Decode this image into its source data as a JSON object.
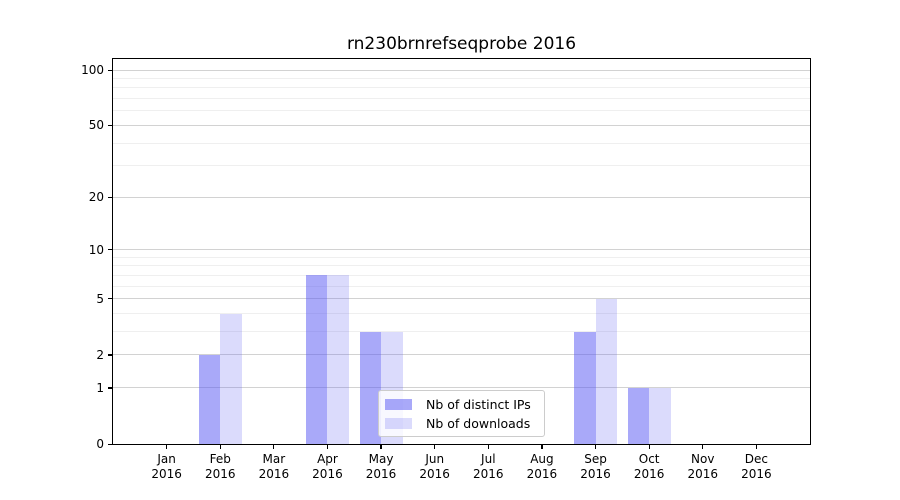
{
  "title": "rn230brnrefseqprobe 2016",
  "chart_data": {
    "type": "bar",
    "title": "rn230brnrefseqprobe 2016",
    "categories": [
      "Jan 2016",
      "Feb 2016",
      "Mar 2016",
      "Apr 2016",
      "May 2016",
      "Jun 2016",
      "Jul 2016",
      "Aug 2016",
      "Sep 2016",
      "Oct 2016",
      "Nov 2016",
      "Dec 2016"
    ],
    "series": [
      {
        "name": "Nb of distinct IPs",
        "color": "rgba(90,90,243,0.52)",
        "apparent_hex": "#aaaaf8",
        "values": [
          0,
          2,
          0,
          7,
          3,
          0,
          0,
          0,
          3,
          1,
          0,
          0
        ]
      },
      {
        "name": "Nb of downloads",
        "color": "rgba(90,90,243,0.22)",
        "apparent_hex": "#dbdbf8",
        "values": [
          0,
          4,
          0,
          7,
          3,
          0,
          0,
          0,
          5,
          1,
          0,
          0
        ]
      }
    ],
    "xlabel": "",
    "ylabel": "",
    "yscale": "log10(value+1)",
    "ylim": [
      0,
      115
    ],
    "yticks": [
      0,
      1,
      2,
      5,
      10,
      20,
      50,
      100
    ],
    "minor_gridlines": [
      3,
      4,
      6,
      7,
      8,
      9,
      30,
      40,
      60,
      70,
      80,
      90
    ],
    "grid": true,
    "legend_position": "lower center",
    "bar_grouping": "paired, distinct IPs left of tick, downloads right of tick"
  },
  "colors": {
    "background": "#ffffff",
    "spine": "#000000",
    "major_gridline": "#d2d2d2",
    "minor_gridline": "#efefef",
    "text": "#000000"
  }
}
